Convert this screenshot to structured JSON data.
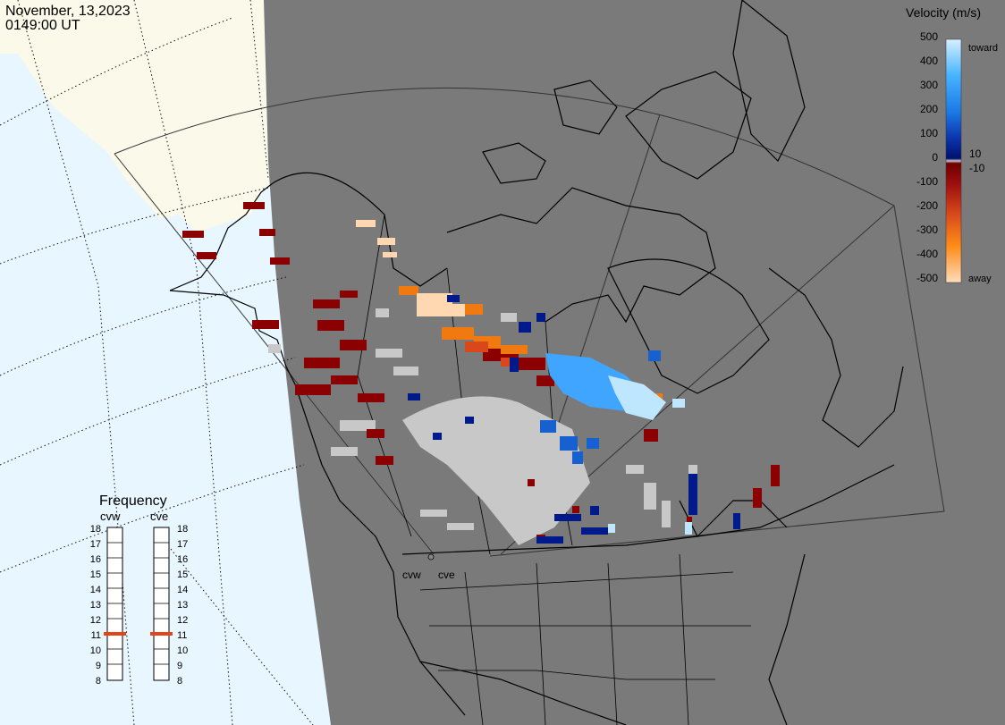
{
  "header": {
    "date": "November, 13,2023",
    "time": "0149:00 UT"
  },
  "velocity_scale": {
    "title": "Velocity (m/s)",
    "ticks": [
      "500",
      "400",
      "300",
      "200",
      "100",
      "10",
      "0",
      "-10",
      "-100",
      "-200",
      "-300",
      "-400",
      "-500"
    ],
    "toward_label": "toward",
    "away_label": "away"
  },
  "frequency_panel": {
    "title": "Frequency",
    "radars": [
      {
        "name": "cvw",
        "frequency": 11
      },
      {
        "name": "cve",
        "frequency": 11
      }
    ],
    "ticks": [
      "18",
      "17",
      "16",
      "15",
      "14",
      "13",
      "12",
      "11",
      "10",
      "9",
      "8"
    ]
  },
  "sites": [
    {
      "label": "cvw"
    },
    {
      "label": "cve"
    }
  ],
  "colors": {
    "ocean": "#e8f6ff",
    "land_day": "#fbf9e9",
    "night_shade": "#7a7a7a",
    "ground_scatter": "#c8c8c8",
    "frequency_marker": "#e0461a"
  }
}
